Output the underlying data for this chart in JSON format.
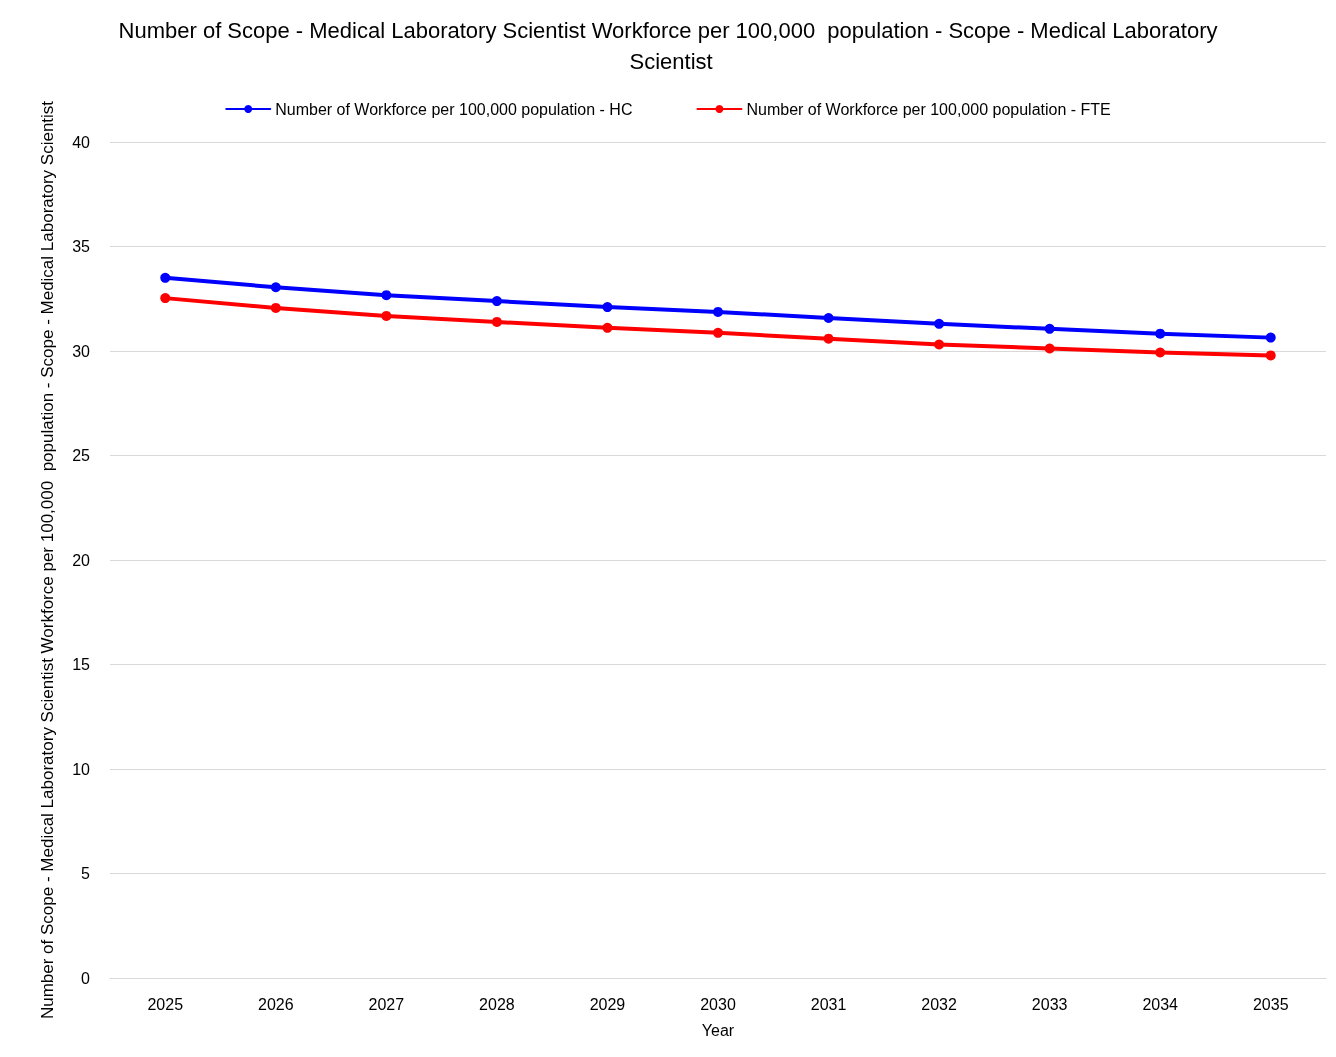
{
  "chart_data": {
    "type": "line",
    "title": "Number of Scope - Medical Laboratory Scientist Workforce per 100,000  population - Scope - Medical Laboratory Scientist",
    "xlabel": "Year",
    "ylabel": "Number of Scope - Medical Laboratory Scientist Workforce per 100,000  population - Scope - Medical Laboratory Scientist",
    "categories": [
      "2025",
      "2026",
      "2027",
      "2028",
      "2029",
      "2030",
      "2031",
      "2032",
      "2033",
      "2034",
      "2035"
    ],
    "series": [
      {
        "name": "Number of Workforce per 100,000 population - HC",
        "color": "#0000ff",
        "values": [
          33.5,
          33.05,
          32.67,
          32.39,
          32.1,
          31.87,
          31.58,
          31.3,
          31.06,
          30.83,
          30.64
        ]
      },
      {
        "name": "Number of Workforce per 100,000 population - FTE",
        "color": "#ff0000",
        "values": [
          32.53,
          32.06,
          31.68,
          31.39,
          31.11,
          30.87,
          30.59,
          30.31,
          30.12,
          29.93,
          29.79
        ]
      }
    ],
    "ylim": [
      0,
      40
    ],
    "yticks": [
      0,
      5,
      10,
      15,
      20,
      25,
      30,
      35,
      40
    ],
    "grid": "y",
    "legend": "top",
    "marker": "circle",
    "line_style": "solid"
  }
}
